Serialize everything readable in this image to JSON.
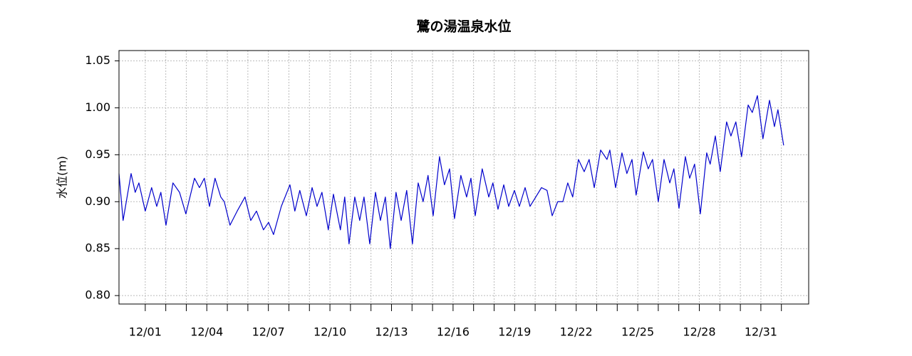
{
  "chart_data": {
    "type": "line",
    "title": "鷺の湯温泉水位",
    "y_label": "水位(m)",
    "xlim": [
      -1.28,
      32.33
    ],
    "ylim": [
      0.791,
      1.061
    ],
    "xticks": [
      {
        "value": 0,
        "label": "12/01"
      },
      {
        "value": 3,
        "label": "12/04"
      },
      {
        "value": 6,
        "label": "12/07"
      },
      {
        "value": 9,
        "label": "12/10"
      },
      {
        "value": 12,
        "label": "12/13"
      },
      {
        "value": 15,
        "label": "12/16"
      },
      {
        "value": 18,
        "label": "12/19"
      },
      {
        "value": 21,
        "label": "12/22"
      },
      {
        "value": 24,
        "label": "12/25"
      },
      {
        "value": 27,
        "label": "12/28"
      },
      {
        "value": 30,
        "label": "12/31"
      }
    ],
    "xminorticks": [
      1,
      2,
      4,
      5,
      7,
      8,
      10,
      11,
      13,
      14,
      16,
      17,
      19,
      20,
      22,
      23,
      25,
      26,
      28,
      29,
      31
    ],
    "yticks": [
      {
        "value": 0.8,
        "label": "0.80"
      },
      0.85,
      {
        "value": 0.9,
        "label": "0.90"
      },
      0.95,
      {
        "value": 1.0,
        "label": "1.00"
      },
      1.05
    ],
    "grid": true,
    "series": [
      {
        "color": "#0000cc",
        "x": [
          -1.28,
          -1.08,
          -0.69,
          -0.49,
          -0.31,
          0,
          0.31,
          0.56,
          0.76,
          1.01,
          1.35,
          1.67,
          1.98,
          2.4,
          2.64,
          2.88,
          3.13,
          3.4,
          3.68,
          3.85,
          4.13,
          4.48,
          4.86,
          5.14,
          5.42,
          5.76,
          6.01,
          6.25,
          6.63,
          7.05,
          7.29,
          7.53,
          7.85,
          8.13,
          8.37,
          8.61,
          8.92,
          9.17,
          9.51,
          9.72,
          9.93,
          10.21,
          10.45,
          10.66,
          10.94,
          11.22,
          11.46,
          11.7,
          11.94,
          12.22,
          12.47,
          12.74,
          13.02,
          13.3,
          13.54,
          13.78,
          14.03,
          14.34,
          14.58,
          14.83,
          15.07,
          15.38,
          15.66,
          15.87,
          16.08,
          16.42,
          16.74,
          16.94,
          17.19,
          17.47,
          17.71,
          17.99,
          18.23,
          18.51,
          18.75,
          19.03,
          19.31,
          19.58,
          19.83,
          20.1,
          20.35,
          20.59,
          20.83,
          21.11,
          21.39,
          21.63,
          21.88,
          22.19,
          22.5,
          22.64,
          22.92,
          23.23,
          23.47,
          23.72,
          23.92,
          24.27,
          24.51,
          24.72,
          25.0,
          25.28,
          25.56,
          25.76,
          26.01,
          26.32,
          26.53,
          26.77,
          27.05,
          27.36,
          27.53,
          27.78,
          28.02,
          28.33,
          28.54,
          28.78,
          29.06,
          29.38,
          29.58,
          29.83,
          30.1,
          30.42,
          30.66,
          30.83,
          31.11
        ],
        "values": [
          0.93,
          0.88,
          0.93,
          0.91,
          0.92,
          0.89,
          0.915,
          0.895,
          0.91,
          0.875,
          0.92,
          0.91,
          0.887,
          0.925,
          0.915,
          0.925,
          0.895,
          0.925,
          0.905,
          0.9,
          0.875,
          0.89,
          0.905,
          0.88,
          0.89,
          0.87,
          0.878,
          0.865,
          0.895,
          0.918,
          0.89,
          0.912,
          0.885,
          0.915,
          0.895,
          0.91,
          0.87,
          0.908,
          0.87,
          0.905,
          0.855,
          0.905,
          0.88,
          0.905,
          0.855,
          0.91,
          0.88,
          0.905,
          0.85,
          0.91,
          0.88,
          0.912,
          0.855,
          0.92,
          0.9,
          0.928,
          0.885,
          0.948,
          0.918,
          0.935,
          0.882,
          0.928,
          0.905,
          0.925,
          0.885,
          0.935,
          0.905,
          0.92,
          0.892,
          0.918,
          0.895,
          0.912,
          0.895,
          0.915,
          0.895,
          0.905,
          0.915,
          0.912,
          0.885,
          0.9,
          0.9,
          0.92,
          0.905,
          0.945,
          0.932,
          0.945,
          0.915,
          0.955,
          0.945,
          0.955,
          0.915,
          0.952,
          0.93,
          0.945,
          0.907,
          0.953,
          0.935,
          0.945,
          0.9,
          0.945,
          0.92,
          0.935,
          0.893,
          0.948,
          0.925,
          0.94,
          0.887,
          0.952,
          0.94,
          0.97,
          0.932,
          0.985,
          0.97,
          0.985,
          0.948,
          1.003,
          0.995,
          1.013,
          0.967,
          1.008,
          0.98,
          0.998,
          0.96
        ]
      }
    ]
  }
}
